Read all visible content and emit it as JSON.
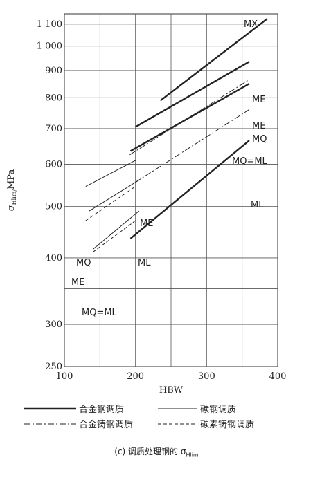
{
  "chart_data": {
    "type": "line",
    "xlabel": "HBW",
    "ylabel": "σHlim/MPa",
    "xlim": [
      100,
      400
    ],
    "ylim": [
      250,
      1150
    ],
    "yscale": "log",
    "x_ticks": [
      100,
      200,
      300,
      400
    ],
    "y_ticks": [
      250,
      300,
      400,
      500,
      600,
      700,
      800,
      900,
      1000,
      1100
    ],
    "y_tick_labels": [
      "250",
      "300",
      "400",
      "500",
      "600",
      "700",
      "800",
      "900",
      "1 000",
      "1 100"
    ],
    "grid": true,
    "series": [
      {
        "name": "合金钢调质 MX",
        "style": "thick-solid",
        "label": "MX",
        "points": [
          [
            235,
            790
          ],
          [
            385,
            1125
          ]
        ]
      },
      {
        "name": "合金钢调质 ME",
        "style": "thick-solid",
        "label": "ME",
        "points": [
          [
            200,
            705
          ],
          [
            360,
            935
          ]
        ]
      },
      {
        "name": "合金钢调质 MQ",
        "style": "thick-solid",
        "label": "MQ",
        "points": [
          [
            193,
            635
          ],
          [
            360,
            850
          ]
        ]
      },
      {
        "name": "合金钢调质 ML",
        "style": "thick-solid",
        "label": "ML",
        "points": [
          [
            193,
            435
          ],
          [
            360,
            665
          ]
        ]
      },
      {
        "name": "合金铸钢调质 ME",
        "style": "dashdot",
        "label": "ME",
        "points": [
          [
            192,
            625
          ],
          [
            360,
            865
          ]
        ]
      },
      {
        "name": "合金铸钢调质 MQ=ML",
        "style": "dashdot",
        "label": "MQ=ML",
        "points": [
          [
            200,
            555
          ],
          [
            360,
            760
          ]
        ]
      },
      {
        "name": "碳钢调质 ME",
        "style": "thin-solid",
        "label": "ME",
        "points": [
          [
            130,
            545
          ],
          [
            200,
            610
          ]
        ]
      },
      {
        "name": "碳钢调质 MQ",
        "style": "thin-solid",
        "label": "MQ",
        "points": [
          [
            135,
            490
          ],
          [
            205,
            560
          ]
        ]
      },
      {
        "name": "碳钢调质 MQ=ML",
        "style": "thin-solid",
        "label": "MQ=ML",
        "points": [
          [
            140,
            415
          ],
          [
            205,
            490
          ]
        ]
      },
      {
        "name": "碳素铸钢调质 ME",
        "style": "dashed",
        "label": "ME",
        "points": [
          [
            130,
            470
          ],
          [
            200,
            545
          ]
        ]
      },
      {
        "name": "碳素铸钢调质 ML",
        "style": "dashed",
        "label": "ML",
        "points": [
          [
            140,
            410
          ],
          [
            200,
            470
          ]
        ]
      }
    ],
    "legend": {
      "placement": "bottom",
      "entries": [
        {
          "text": "合金钢调质",
          "style": "thick-solid"
        },
        {
          "text": "碳钢调质",
          "style": "thin-solid"
        },
        {
          "text": "合金铸钢调质",
          "style": "dashdot"
        },
        {
          "text": "碳素铸钢调质",
          "style": "dashed"
        }
      ]
    },
    "caption": {
      "prefix": "(c) 调质处理钢的 σ",
      "subscript": "Hlim"
    }
  }
}
